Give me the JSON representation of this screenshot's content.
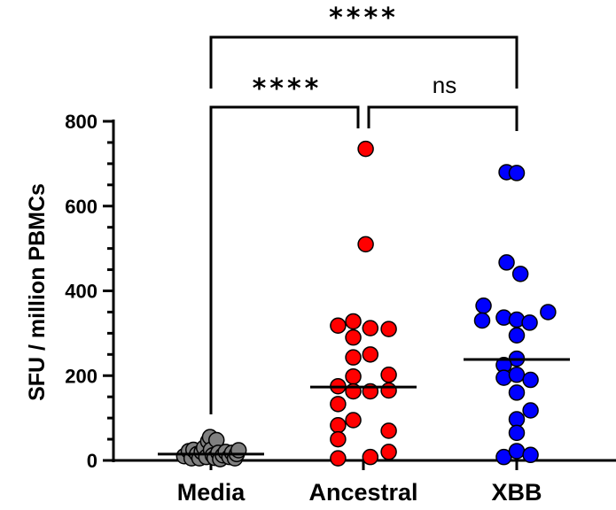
{
  "chart_data": {
    "type": "scatter",
    "ylabel": "SFU / million PBMCs",
    "ylim": [
      0,
      800
    ],
    "yticks": [
      0,
      200,
      400,
      600,
      800
    ],
    "categories": [
      "Media",
      "Ancestral",
      "XBB"
    ],
    "series": [
      {
        "category": "Media",
        "color": "#808080",
        "median": 15,
        "points": [
          {
            "offset": -0.58,
            "y": 10
          },
          {
            "offset": -0.48,
            "y": 22
          },
          {
            "offset": -0.42,
            "y": 5
          },
          {
            "offset": -0.38,
            "y": 25
          },
          {
            "offset": -0.3,
            "y": 15
          },
          {
            "offset": -0.25,
            "y": 5
          },
          {
            "offset": -0.2,
            "y": 20
          },
          {
            "offset": -0.15,
            "y": 30
          },
          {
            "offset": -0.1,
            "y": 8
          },
          {
            "offset": -0.06,
            "y": 45
          },
          {
            "offset": -0.02,
            "y": 55
          },
          {
            "offset": 0.0,
            "y": 25
          },
          {
            "offset": 0.04,
            "y": 12
          },
          {
            "offset": 0.08,
            "y": 6
          },
          {
            "offset": 0.12,
            "y": 48
          },
          {
            "offset": 0.16,
            "y": 18
          },
          {
            "offset": 0.2,
            "y": 3
          },
          {
            "offset": 0.26,
            "y": 12
          },
          {
            "offset": 0.32,
            "y": 20
          },
          {
            "offset": 0.4,
            "y": 8
          },
          {
            "offset": 0.46,
            "y": 18
          },
          {
            "offset": 0.52,
            "y": 5
          },
          {
            "offset": 0.56,
            "y": 15
          },
          {
            "offset": 0.6,
            "y": 24
          }
        ]
      },
      {
        "category": "Ancestral",
        "color": "#ff0000",
        "median": 173,
        "points": [
          {
            "offset": 0.05,
            "y": 735
          },
          {
            "offset": 0.05,
            "y": 510
          },
          {
            "offset": -0.55,
            "y": 318
          },
          {
            "offset": -0.55,
            "y": 175
          },
          {
            "offset": -0.55,
            "y": 133
          },
          {
            "offset": -0.55,
            "y": 83
          },
          {
            "offset": -0.55,
            "y": 50
          },
          {
            "offset": -0.55,
            "y": 5
          },
          {
            "offset": -0.22,
            "y": 328
          },
          {
            "offset": -0.22,
            "y": 290
          },
          {
            "offset": -0.22,
            "y": 243
          },
          {
            "offset": -0.22,
            "y": 198
          },
          {
            "offset": -0.22,
            "y": 163
          },
          {
            "offset": -0.22,
            "y": 95
          },
          {
            "offset": 0.15,
            "y": 312
          },
          {
            "offset": 0.15,
            "y": 250
          },
          {
            "offset": 0.15,
            "y": 163
          },
          {
            "offset": 0.15,
            "y": 8
          },
          {
            "offset": 0.55,
            "y": 310
          },
          {
            "offset": 0.55,
            "y": 202
          },
          {
            "offset": 0.55,
            "y": 165
          },
          {
            "offset": 0.55,
            "y": 70
          },
          {
            "offset": 0.55,
            "y": 20
          }
        ]
      },
      {
        "category": "XBB",
        "color": "#0000ff",
        "median": 238,
        "points": [
          {
            "offset": -0.22,
            "y": 680
          },
          {
            "offset": 0.0,
            "y": 678
          },
          {
            "offset": -0.22,
            "y": 467
          },
          {
            "offset": 0.08,
            "y": 440
          },
          {
            "offset": -0.72,
            "y": 365
          },
          {
            "offset": -0.75,
            "y": 330
          },
          {
            "offset": -0.28,
            "y": 337
          },
          {
            "offset": 0.0,
            "y": 332
          },
          {
            "offset": 0.28,
            "y": 325
          },
          {
            "offset": 0.68,
            "y": 350
          },
          {
            "offset": 0.0,
            "y": 295
          },
          {
            "offset": 0.0,
            "y": 240
          },
          {
            "offset": -0.28,
            "y": 225
          },
          {
            "offset": -0.28,
            "y": 195
          },
          {
            "offset": 0.0,
            "y": 202
          },
          {
            "offset": 0.3,
            "y": 190
          },
          {
            "offset": 0.0,
            "y": 160
          },
          {
            "offset": 0.3,
            "y": 118
          },
          {
            "offset": 0.0,
            "y": 97
          },
          {
            "offset": 0.0,
            "y": 65
          },
          {
            "offset": -0.28,
            "y": 8
          },
          {
            "offset": 0.0,
            "y": 22
          },
          {
            "offset": 0.3,
            "y": 13
          }
        ]
      }
    ],
    "annotations": [
      {
        "from": "Media",
        "to": "XBB",
        "label": "****"
      },
      {
        "from": "Media",
        "to": "Ancestral",
        "label": "****"
      },
      {
        "from": "Ancestral",
        "to": "XBB",
        "label": "ns"
      }
    ]
  }
}
